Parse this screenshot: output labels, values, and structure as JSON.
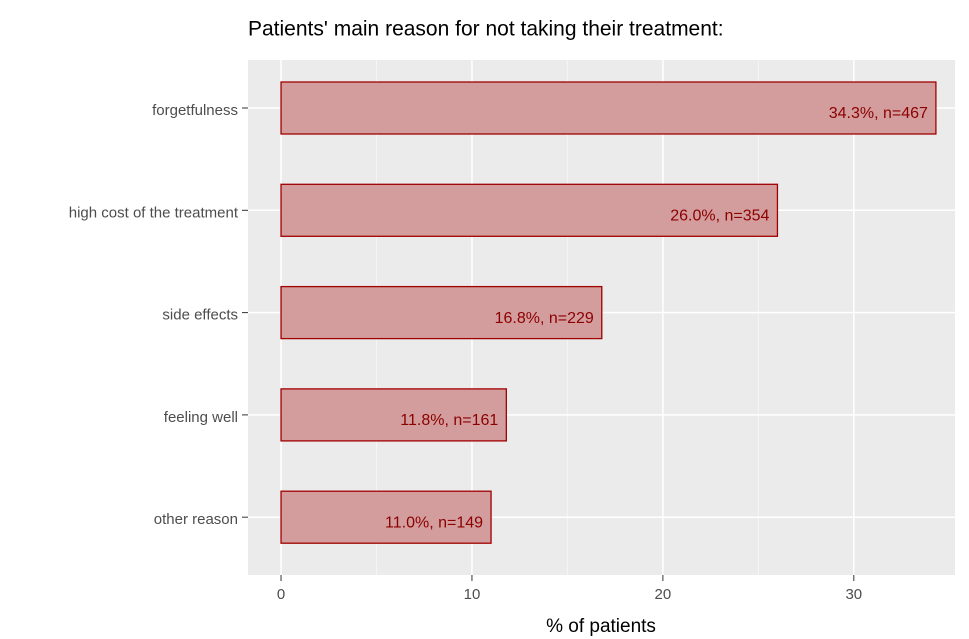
{
  "chart_data": {
    "type": "bar",
    "orientation": "horizontal",
    "title": "Patients' main reason for not taking their treatment:",
    "x_label": "% of patients",
    "categories": [
      "forgetfulness",
      "high cost of the treatment",
      "side effects",
      "feeling well",
      "other reason"
    ],
    "values": [
      34.3,
      26.0,
      16.8,
      11.8,
      11.0
    ],
    "value_labels": [
      "34.3%, n=467",
      "26.0%, n=354",
      "16.8%, n=229",
      "11.8%, n=161",
      "11.0%, n=149"
    ],
    "color": "#d49d9d",
    "edge_color": "#a00000",
    "label_color": "#8b0000",
    "xlim": [
      -1.73,
      35.3
    ],
    "xticks": [
      0,
      10,
      20,
      30
    ],
    "minor_xticks": [
      5,
      15,
      25
    ],
    "grid": true
  }
}
